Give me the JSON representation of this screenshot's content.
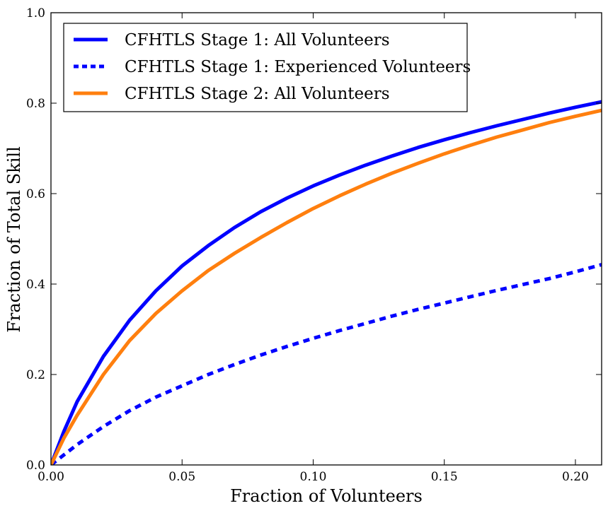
{
  "chart_data": {
    "type": "line",
    "xlabel": "Fraction of Volunteers",
    "ylabel": "Fraction of Total Skill",
    "xlim": [
      0,
      0.21
    ],
    "ylim": [
      0,
      1.0
    ],
    "xticks": [
      "0.00",
      "0.05",
      "0.10",
      "0.15",
      "0.20"
    ],
    "yticks": [
      "0.0",
      "0.2",
      "0.4",
      "0.6",
      "0.8",
      "1.0"
    ],
    "grid": false,
    "legend_position": "top-left",
    "series": [
      {
        "name": "CFHTLS Stage 1: All Volunteers",
        "color": "#0000ff",
        "style": "solid",
        "x": [
          0,
          0.005,
          0.01,
          0.02,
          0.03,
          0.04,
          0.05,
          0.06,
          0.07,
          0.08,
          0.09,
          0.1,
          0.11,
          0.12,
          0.13,
          0.14,
          0.15,
          0.16,
          0.17,
          0.18,
          0.19,
          0.2,
          0.21
        ],
        "y": [
          0,
          0.075,
          0.14,
          0.24,
          0.32,
          0.385,
          0.44,
          0.485,
          0.525,
          0.56,
          0.59,
          0.617,
          0.641,
          0.663,
          0.683,
          0.702,
          0.719,
          0.735,
          0.75,
          0.764,
          0.778,
          0.791,
          0.803
        ]
      },
      {
        "name": "CFHTLS Stage 1: Experienced Volunteers",
        "color": "#0000ff",
        "style": "dashed",
        "x": [
          0,
          0.01,
          0.02,
          0.03,
          0.04,
          0.05,
          0.06,
          0.07,
          0.08,
          0.09,
          0.1,
          0.11,
          0.12,
          0.13,
          0.14,
          0.15,
          0.16,
          0.17,
          0.18,
          0.19,
          0.2,
          0.21
        ],
        "y": [
          0,
          0.045,
          0.085,
          0.12,
          0.15,
          0.175,
          0.2,
          0.222,
          0.243,
          0.262,
          0.28,
          0.297,
          0.313,
          0.329,
          0.344,
          0.358,
          0.372,
          0.386,
          0.399,
          0.412,
          0.427,
          0.443
        ]
      },
      {
        "name": "CFHTLS Stage 2: All Volunteers",
        "color": "#ff7f0e",
        "style": "solid",
        "x": [
          0,
          0.005,
          0.01,
          0.02,
          0.03,
          0.04,
          0.05,
          0.06,
          0.07,
          0.08,
          0.09,
          0.1,
          0.11,
          0.12,
          0.13,
          0.14,
          0.15,
          0.16,
          0.17,
          0.18,
          0.19,
          0.2,
          0.21
        ],
        "y": [
          0,
          0.06,
          0.11,
          0.2,
          0.275,
          0.335,
          0.385,
          0.43,
          0.468,
          0.503,
          0.536,
          0.567,
          0.595,
          0.621,
          0.645,
          0.667,
          0.688,
          0.707,
          0.725,
          0.741,
          0.757,
          0.771,
          0.784
        ]
      }
    ]
  }
}
